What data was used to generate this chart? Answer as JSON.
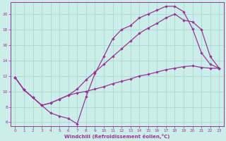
{
  "xlabel": "Windchill (Refroidissement éolien,°C)",
  "bg_color": "#cceee8",
  "grid_color": "#aad8d3",
  "line_color": "#993399",
  "xlim": [
    -0.5,
    23.5
  ],
  "ylim": [
    5.5,
    21.5
  ],
  "xticks": [
    0,
    1,
    2,
    3,
    4,
    5,
    6,
    7,
    8,
    9,
    10,
    11,
    12,
    13,
    14,
    15,
    16,
    17,
    18,
    19,
    20,
    21,
    22,
    23
  ],
  "yticks": [
    6,
    8,
    10,
    12,
    14,
    16,
    18,
    20
  ],
  "line1_x": [
    0,
    1,
    2,
    3,
    4,
    5,
    6,
    7,
    8,
    9,
    10,
    11,
    12,
    13,
    14,
    15,
    16,
    17,
    18,
    19,
    20,
    21,
    22,
    23
  ],
  "line1_y": [
    11.8,
    10.2,
    9.2,
    8.2,
    7.2,
    6.8,
    6.5,
    5.8,
    9.3,
    12.3,
    14.5,
    16.8,
    18.0,
    18.5,
    19.5,
    20.0,
    20.5,
    21.0,
    21.0,
    20.3,
    18.1,
    15.0,
    13.5,
    13.0
  ],
  "line2_x": [
    0,
    1,
    2,
    3,
    4,
    5,
    6,
    7,
    8,
    9,
    10,
    11,
    12,
    13,
    14,
    15,
    16,
    17,
    18,
    19,
    20,
    21,
    22,
    23
  ],
  "line2_y": [
    11.8,
    10.2,
    9.2,
    8.2,
    8.5,
    9.0,
    9.5,
    10.3,
    11.5,
    12.5,
    13.5,
    14.5,
    15.5,
    16.5,
    17.5,
    18.2,
    18.8,
    19.5,
    20.0,
    19.2,
    19.0,
    18.0,
    14.5,
    13.0
  ],
  "line3_x": [
    0,
    1,
    2,
    3,
    4,
    5,
    6,
    7,
    8,
    9,
    10,
    11,
    12,
    13,
    14,
    15,
    16,
    17,
    18,
    19,
    20,
    21,
    22,
    23
  ],
  "line3_y": [
    11.8,
    10.2,
    9.2,
    8.2,
    8.5,
    9.0,
    9.5,
    9.8,
    10.0,
    10.3,
    10.6,
    11.0,
    11.3,
    11.6,
    12.0,
    12.2,
    12.5,
    12.8,
    13.0,
    13.2,
    13.3,
    13.1,
    13.0,
    13.0
  ]
}
